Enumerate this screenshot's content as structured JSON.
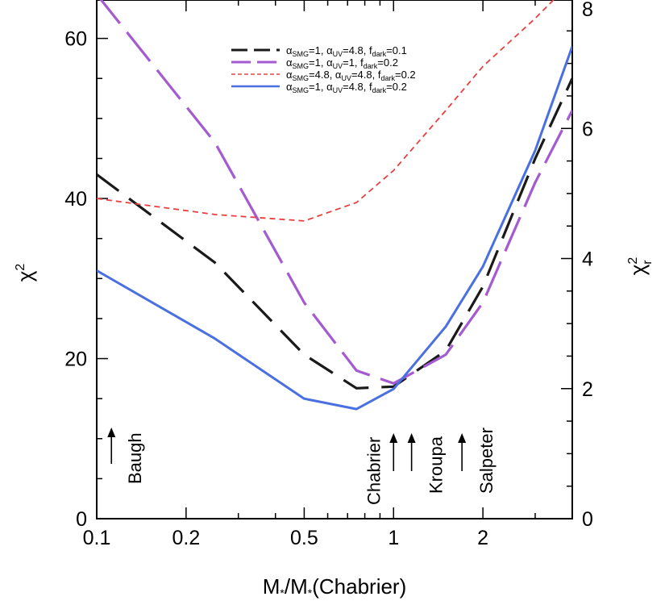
{
  "chart_data": {
    "type": "line",
    "xscale": "log",
    "xlim": [
      0.1,
      4.0
    ],
    "ylim": [
      0,
      65
    ],
    "ylim_right": [
      0,
      8
    ],
    "xlabel": "M*/M*(Chabrier)",
    "ylabel": "χ2",
    "ylabel_right": "χr2",
    "xticks": [
      0.1,
      0.2,
      0.5,
      1,
      2
    ],
    "xtick_labels": [
      "0.1",
      "0.2",
      "0.5",
      "1",
      "2"
    ],
    "yticks": [
      0,
      20,
      40,
      60
    ],
    "ytick_labels": [
      "0",
      "20",
      "40",
      "60"
    ],
    "yticks_right": [
      0,
      2,
      4,
      6,
      8
    ],
    "ytick_labels_right": [
      "0",
      "2",
      "4",
      "6",
      "8"
    ],
    "legend_position": "top-right",
    "series": [
      {
        "name": "αSMG=1, αUV=4.8, fdark=0.1",
        "color": "#1a1a1a",
        "dash": "long",
        "x": [
          0.1,
          0.25,
          0.5,
          0.75,
          1.0,
          1.5,
          2.0,
          3.0,
          4.0
        ],
        "y": [
          43,
          32,
          20.5,
          16.3,
          16.5,
          21,
          29,
          45,
          55
        ]
      },
      {
        "name": "αSMG=1, αUV=1, fdark=0.2",
        "color": "#a45ad0",
        "dash": "longer",
        "x": [
          0.1,
          0.25,
          0.5,
          0.75,
          1.0,
          1.5,
          2.0,
          3.0,
          4.0
        ],
        "y": [
          65.5,
          47,
          27,
          18.5,
          16.9,
          20.5,
          27,
          42,
          51
        ]
      },
      {
        "name": "αSMG=4.8, αUV=4.8, fdark=0.2",
        "color": "#e84040",
        "dash": "short",
        "x": [
          0.1,
          0.25,
          0.5,
          0.75,
          1.0,
          1.5,
          2.0,
          3.0,
          3.5
        ],
        "y": [
          40,
          38,
          37.2,
          39.5,
          43.5,
          51,
          56.5,
          62.5,
          65
        ]
      },
      {
        "name": "αSMG=1, αUV=4.8, fdark=0.2",
        "color": "#4a6fe0",
        "dash": "solid",
        "x": [
          0.1,
          0.25,
          0.5,
          0.75,
          1.0,
          1.5,
          2.0,
          3.0,
          4.0
        ],
        "y": [
          31,
          22.5,
          15,
          13.7,
          16.2,
          24,
          31.5,
          46,
          59
        ]
      }
    ],
    "legend": [
      {
        "a1": "α",
        "s1": "SMG",
        "v1": "=1, ",
        "a2": "α",
        "s2": "UV",
        "v2": "=4.8, ",
        "f": "f",
        "s3": "dark",
        "v3": "=0.1"
      },
      {
        "a1": "α",
        "s1": "SMG",
        "v1": "=1, ",
        "a2": "α",
        "s2": "UV",
        "v2": "=1, ",
        "f": "f",
        "s3": "dark",
        "v3": "=0.2"
      },
      {
        "a1": "α",
        "s1": "SMG",
        "v1": "=4.8, ",
        "a2": "α",
        "s2": "UV",
        "v2": "=4.8, ",
        "f": "f",
        "s3": "dark",
        "v3": "=0.2"
      },
      {
        "a1": "α",
        "s1": "SMG",
        "v1": "=1, ",
        "a2": "α",
        "s2": "UV",
        "v2": "=4.8, ",
        "f": "f",
        "s3": "dark",
        "v3": "=0.2"
      }
    ],
    "annotations": [
      {
        "label": "Baugh",
        "x": 0.11
      },
      {
        "label": "Chabrier",
        "x": 1.0
      },
      {
        "label": "Kroupa",
        "x": 1.15
      },
      {
        "label": "Salpeter",
        "x": 1.7
      }
    ]
  }
}
